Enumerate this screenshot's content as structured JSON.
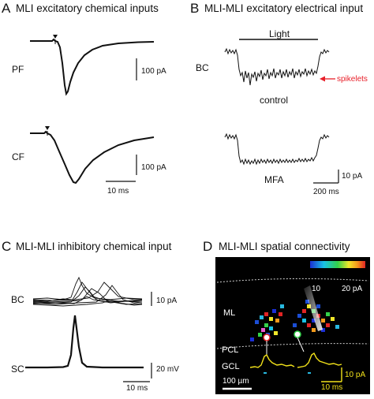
{
  "panels": {
    "a": {
      "letter": "A",
      "title": "MLI excitatory chemical inputs",
      "row1_label": "PF",
      "row2_label": "CF",
      "scale1": "100 pA",
      "scale2": "100 pA",
      "time_scale": "10 ms"
    },
    "b": {
      "letter": "B",
      "title": "MLI-MLI excitatory electrical input",
      "cell_label": "BC",
      "light_label": "Light",
      "spikelets_label": "spikelets",
      "control_label": "control",
      "mfa_label": "MFA",
      "current_scale": "10 pA",
      "time_scale": "200 ms"
    },
    "c": {
      "letter": "C",
      "title": "MLI-MLI inhibitory chemical input",
      "row1_label": "BC",
      "row2_label": "SC",
      "current_scale": "10 pA",
      "voltage_scale": "20 mV",
      "time_scale": "10 ms"
    },
    "d": {
      "letter": "D",
      "title": "MLI-MLI spatial connectivity",
      "colorbar_min": "10",
      "colorbar_max": "20 pA",
      "layer_ml": "ML",
      "layer_pcl": "PCL",
      "layer_gcl": "GCL",
      "scale_length": "100 µm",
      "current_scale": "10 pA",
      "time_scale": "10 ms"
    }
  },
  "colors": {
    "spikelet_arrow": "#e8202a",
    "trace_yellow": "#f2e21a",
    "map_background": "#000000"
  }
}
